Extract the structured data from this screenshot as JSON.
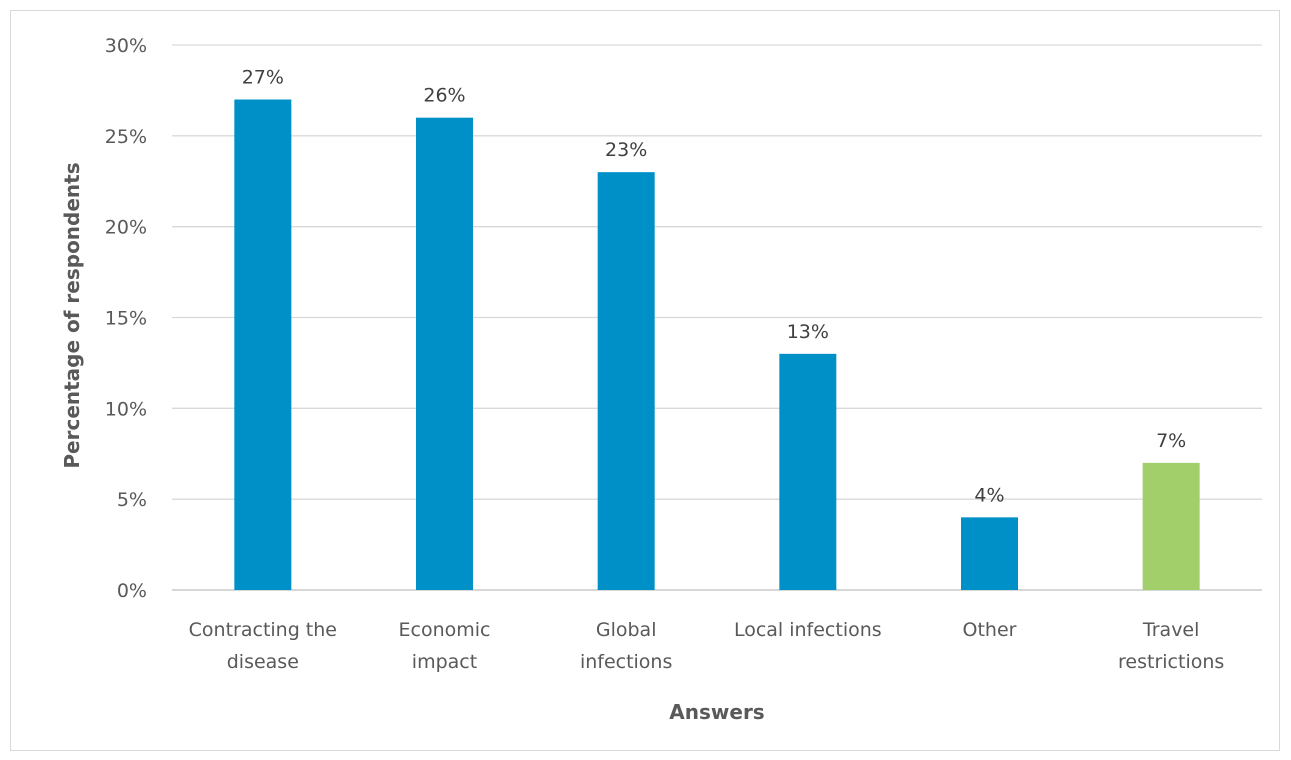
{
  "chart_data": {
    "type": "bar",
    "title": "",
    "xlabel": "Answers",
    "ylabel": "Percentage of respondents",
    "categories": [
      [
        "Contracting the",
        "disease"
      ],
      [
        "Economic",
        "impact"
      ],
      [
        "Global",
        "infections"
      ],
      [
        "Local infections"
      ],
      [
        "Other"
      ],
      [
        "Travel",
        "restrictions"
      ]
    ],
    "values": [
      27,
      26,
      23,
      13,
      4,
      7
    ],
    "value_labels": [
      "27%",
      "26%",
      "23%",
      "13%",
      "4%",
      "7%"
    ],
    "bar_colors": [
      "#0090c8",
      "#0090c8",
      "#0090c8",
      "#0090c8",
      "#0090c8",
      "#a3cf6b"
    ],
    "ylim": [
      0,
      30
    ],
    "yticks": [
      0,
      5,
      10,
      15,
      20,
      25,
      30
    ],
    "ytick_labels": [
      "0%",
      "5%",
      "10%",
      "15%",
      "20%",
      "25%",
      "30%"
    ],
    "grid": true,
    "legend": "none"
  }
}
